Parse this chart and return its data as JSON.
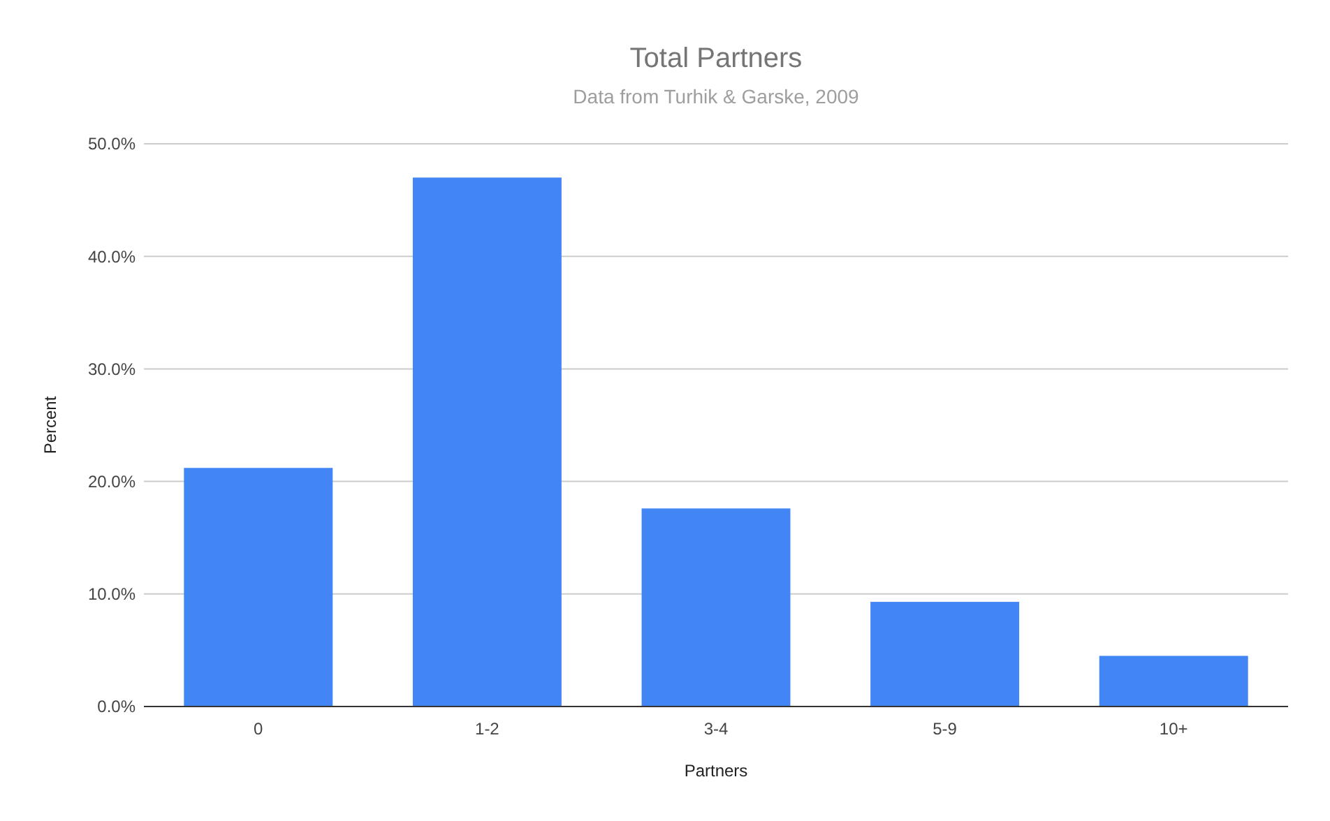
{
  "chart_data": {
    "type": "bar",
    "title": "Total Partners",
    "subtitle": "Data from Turhik & Garske, 2009",
    "xlabel": "Partners",
    "ylabel": "Percent",
    "categories": [
      "0",
      "1-2",
      "3-4",
      "5-9",
      "10+"
    ],
    "values": [
      21.2,
      47.0,
      17.6,
      9.3,
      4.5
    ],
    "color": "#4285f4",
    "ylim": [
      0,
      50
    ],
    "yticks": [
      {
        "value": 0,
        "label": "0.0%"
      },
      {
        "value": 10,
        "label": "10.0%"
      },
      {
        "value": 20,
        "label": "20.0%"
      },
      {
        "value": 30,
        "label": "30.0%"
      },
      {
        "value": 40,
        "label": "40.0%"
      },
      {
        "value": 50,
        "label": "50.0%"
      }
    ],
    "grid": "y"
  }
}
